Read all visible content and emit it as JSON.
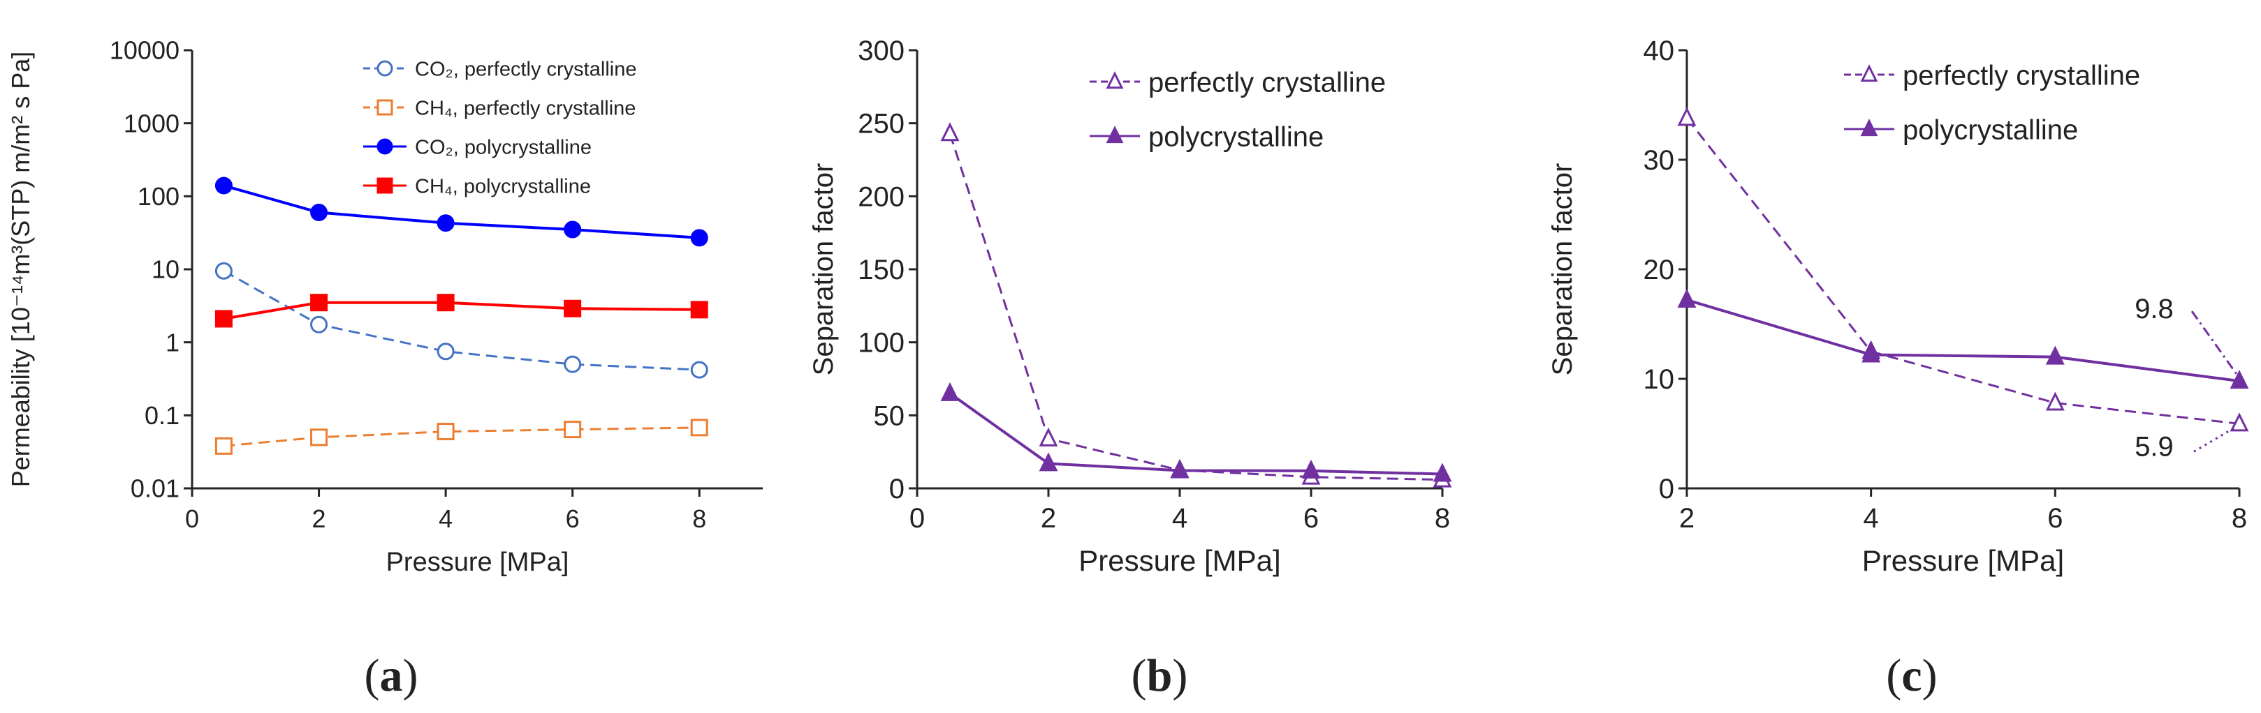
{
  "figure": {
    "panels": [
      {
        "label_open": "(",
        "label_letter": "a",
        "label_close": ")"
      },
      {
        "label_open": "(",
        "label_letter": "b",
        "label_close": ")"
      },
      {
        "label_open": "(",
        "label_letter": "c",
        "label_close": ")"
      }
    ]
  },
  "colors": {
    "co2_perfect": "#4472C4",
    "ch4_perfect": "#ED7D31",
    "co2_poly": "#0000FF",
    "ch4_poly": "#FF0000",
    "purple": "#7030A0",
    "axis": "#262626"
  },
  "chart_data": [
    {
      "id": "a",
      "type": "line",
      "scale_y": "log",
      "xlabel": "Pressure [MPa]",
      "ylabel": "Permeability [10⁻¹⁴m³(STP) m/m² s Pa]",
      "xlim": [
        0,
        9
      ],
      "ylim": [
        0.01,
        10000
      ],
      "xticks": [
        0,
        2,
        4,
        6,
        8
      ],
      "yticks": [
        0.01,
        0.1,
        1,
        10,
        100,
        1000,
        10000
      ],
      "ytick_labels": [
        "0.01",
        "0.1",
        "1",
        "10",
        "100",
        "1000",
        "10000"
      ],
      "legend_position": "top-right",
      "series": [
        {
          "name": "CO₂, perfectly crystalline",
          "x": [
            0.5,
            2,
            4,
            6,
            8
          ],
          "values": [
            9.5,
            1.75,
            0.75,
            0.5,
            0.42
          ],
          "color": "#4472C4",
          "dash": "dashed",
          "marker": "circle-open"
        },
        {
          "name": "CH₄, perfectly crystalline",
          "x": [
            0.5,
            2,
            4,
            6,
            8
          ],
          "values": [
            0.038,
            0.05,
            0.06,
            0.064,
            0.068
          ],
          "color": "#ED7D31",
          "dash": "dashed",
          "marker": "square-open"
        },
        {
          "name": "CO₂, polycrystalline",
          "x": [
            0.5,
            2,
            4,
            6,
            8
          ],
          "values": [
            140,
            60,
            43,
            35,
            27
          ],
          "color": "#0000FF",
          "dash": "solid",
          "marker": "circle-filled"
        },
        {
          "name": "CH₄, polycrystalline",
          "x": [
            0.5,
            2,
            4,
            6,
            8
          ],
          "values": [
            2.1,
            3.5,
            3.5,
            2.9,
            2.8
          ],
          "color": "#FF0000",
          "dash": "solid",
          "marker": "square-filled"
        }
      ]
    },
    {
      "id": "b",
      "type": "line",
      "scale_y": "linear",
      "xlabel": "Pressure [MPa]",
      "ylabel": "Separation factor",
      "xlim": [
        0,
        8
      ],
      "ylim": [
        0,
        300
      ],
      "xticks": [
        0,
        2,
        4,
        6,
        8
      ],
      "yticks": [
        0,
        50,
        100,
        150,
        200,
        250,
        300
      ],
      "ytick_labels": [
        "0",
        "50",
        "100",
        "150",
        "200",
        "250",
        "300"
      ],
      "legend_position": "top-right",
      "series": [
        {
          "name": "perfectly crystalline",
          "x": [
            0.5,
            2,
            4,
            6,
            8
          ],
          "values": [
            243,
            34,
            12.5,
            7.8,
            5.9
          ],
          "color": "#7030A0",
          "dash": "dashed",
          "marker": "triangle-open"
        },
        {
          "name": "polycrystalline",
          "x": [
            0.5,
            2,
            4,
            6,
            8
          ],
          "values": [
            65,
            17,
            12.2,
            12,
            9.8
          ],
          "color": "#7030A0",
          "dash": "solid",
          "marker": "triangle-filled"
        }
      ]
    },
    {
      "id": "c",
      "type": "line",
      "scale_y": "linear",
      "xlabel": "Pressure [MPa]",
      "ylabel": "Separation factor",
      "xlim": [
        2,
        8
      ],
      "ylim": [
        0,
        40
      ],
      "xticks": [
        2,
        4,
        6,
        8
      ],
      "yticks": [
        0,
        10,
        20,
        30,
        40
      ],
      "ytick_labels": [
        "0",
        "10",
        "20",
        "30",
        "40"
      ],
      "legend_position": "top-right",
      "series": [
        {
          "name": "perfectly crystalline",
          "x": [
            2,
            4,
            6,
            8
          ],
          "values": [
            33.8,
            12.5,
            7.8,
            5.9
          ],
          "color": "#7030A0",
          "dash": "dashed",
          "marker": "triangle-open"
        },
        {
          "name": "polycrystalline",
          "x": [
            2,
            4,
            6,
            8
          ],
          "values": [
            17.2,
            12.2,
            12,
            9.8
          ],
          "color": "#7030A0",
          "dash": "solid",
          "marker": "triangle-filled"
        }
      ],
      "annotations": [
        {
          "text": "9.8",
          "x": 8,
          "y": 9.8,
          "series": "polycrystalline",
          "leader": "dash-dot",
          "placement": "above-left"
        },
        {
          "text": "5.9",
          "x": 8,
          "y": 5.9,
          "series": "perfectly crystalline",
          "leader": "dotted",
          "placement": "below-left"
        }
      ]
    }
  ]
}
